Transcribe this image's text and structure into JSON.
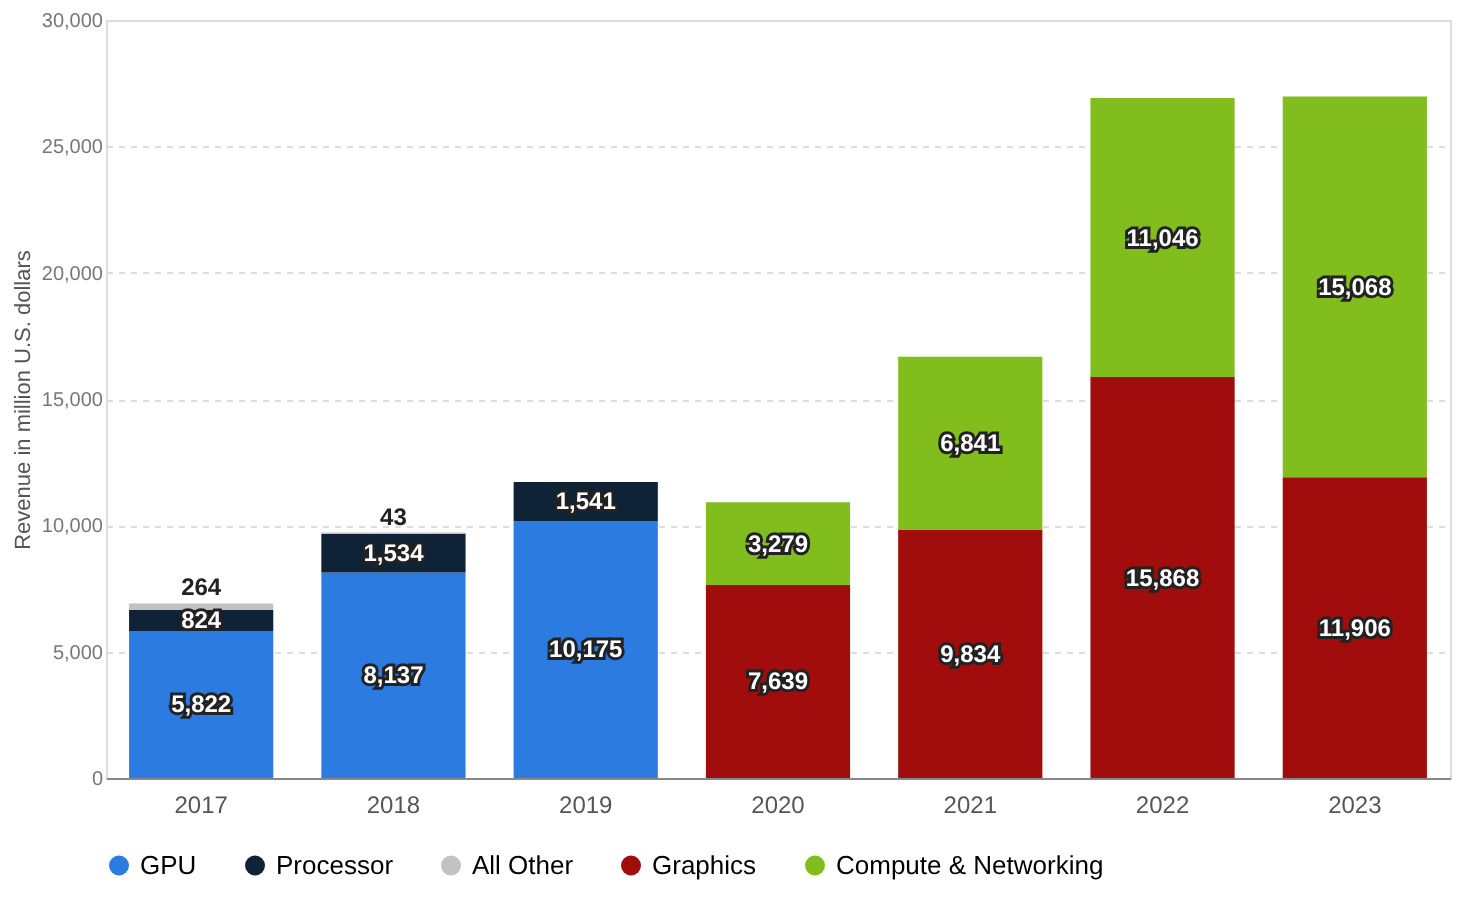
{
  "chart_data": {
    "type": "bar",
    "stacked": true,
    "ylabel": "Revenue in million U.S. dollars",
    "categories": [
      "2017",
      "2018",
      "2019",
      "2020",
      "2021",
      "2022",
      "2023"
    ],
    "series": [
      {
        "name": "GPU",
        "color": "#2c7be0",
        "values": [
          5822,
          8137,
          10175,
          null,
          null,
          null,
          null
        ],
        "value_labels": [
          "5,822",
          "8,137",
          "10,175",
          null,
          null,
          null,
          null
        ]
      },
      {
        "name": "Processor",
        "color": "#0e2238",
        "values": [
          824,
          1534,
          1541,
          null,
          null,
          null,
          null
        ],
        "value_labels": [
          "824",
          "1,534",
          "1,541",
          null,
          null,
          null,
          null
        ]
      },
      {
        "name": "All Other",
        "color": "#c2c2c2",
        "values": [
          264,
          43,
          null,
          null,
          null,
          null,
          null
        ],
        "value_labels": [
          "264",
          "43",
          null,
          null,
          null,
          null,
          null
        ]
      },
      {
        "name": "Graphics",
        "color": "#a10c0c",
        "values": [
          null,
          null,
          null,
          7639,
          9834,
          15868,
          11906
        ],
        "value_labels": [
          null,
          null,
          null,
          "7,639",
          "9,834",
          "15,868",
          "11,906"
        ]
      },
      {
        "name": "Compute & Networking",
        "color": "#82bd1e",
        "values": [
          null,
          null,
          null,
          3279,
          6841,
          11046,
          15068
        ],
        "value_labels": [
          null,
          null,
          null,
          "3,279",
          "6,841",
          "11,046",
          "15,068"
        ]
      }
    ],
    "ylim": [
      0,
      30000
    ],
    "yticks": [
      0,
      {
        "value": 5000,
        "label": "5,000"
      },
      {
        "value": 10000,
        "label": "10,000"
      },
      {
        "value": 15000,
        "label": "15,000"
      },
      {
        "value": 20000,
        "label": "20,000"
      },
      {
        "value": 25000,
        "label": "25,000"
      },
      {
        "value": 30000,
        "label": "30,000"
      }
    ],
    "grid": "y",
    "legend": "bottom"
  }
}
